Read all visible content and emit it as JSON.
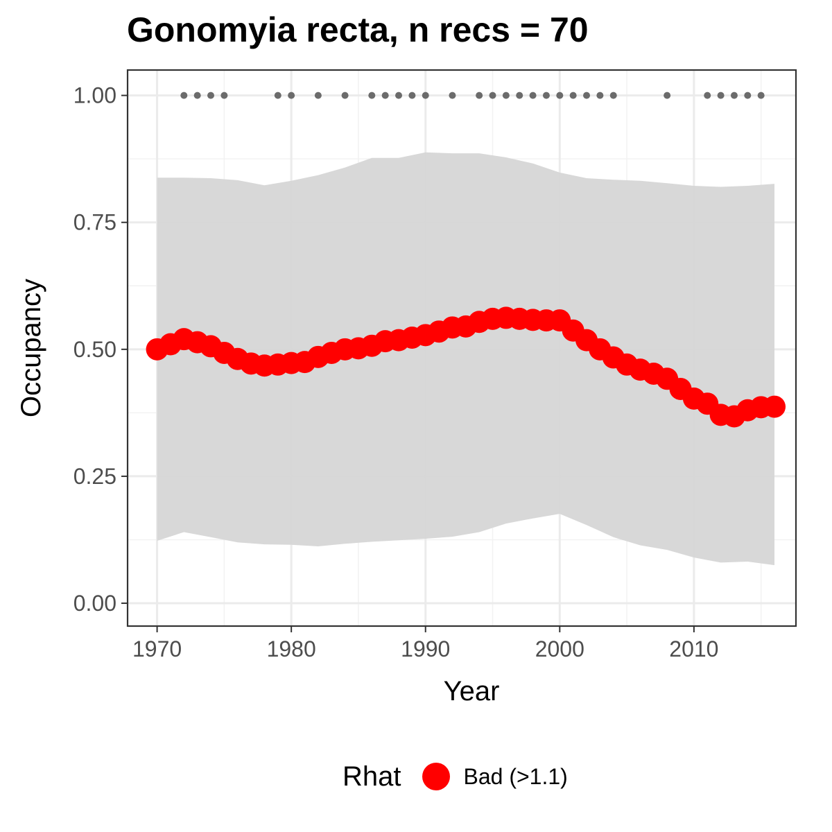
{
  "chart_data": {
    "type": "line",
    "title": "Gonomyia recta, n recs = 70",
    "xlabel": "Year",
    "ylabel": "Occupancy",
    "xlim": [
      1967.8,
      2017.6
    ],
    "ylim": [
      -0.045,
      1.05
    ],
    "x_ticks": [
      1970,
      1980,
      1990,
      2000,
      2010
    ],
    "x_tick_labels": [
      "1970",
      "1980",
      "1990",
      "2000",
      "2010"
    ],
    "y_ticks": [
      0,
      0.25,
      0.5,
      0.75,
      1.0
    ],
    "y_tick_labels": [
      "0.00",
      "0.25",
      "0.50",
      "0.75",
      "1.00"
    ],
    "grid": true,
    "legend": {
      "title": "Rhat",
      "position": "bottom",
      "entries": [
        {
          "label": "Bad (>1.1)",
          "color": "#ff0000"
        }
      ]
    },
    "series": [
      {
        "name": "Bad (>1.1)",
        "color": "#ff0000",
        "x": [
          1970,
          1971,
          1972,
          1973,
          1974,
          1975,
          1976,
          1977,
          1978,
          1979,
          1980,
          1981,
          1982,
          1983,
          1984,
          1985,
          1986,
          1987,
          1988,
          1989,
          1990,
          1991,
          1992,
          1993,
          1994,
          1995,
          1996,
          1997,
          1998,
          1999,
          2000,
          2001,
          2002,
          2003,
          2004,
          2005,
          2006,
          2007,
          2008,
          2009,
          2010,
          2011,
          2012,
          2013,
          2014,
          2015,
          2016
        ],
        "y": [
          0.5,
          0.51,
          0.52,
          0.514,
          0.506,
          0.493,
          0.481,
          0.472,
          0.468,
          0.47,
          0.473,
          0.475,
          0.485,
          0.493,
          0.5,
          0.502,
          0.507,
          0.516,
          0.518,
          0.523,
          0.528,
          0.535,
          0.543,
          0.545,
          0.554,
          0.56,
          0.562,
          0.56,
          0.558,
          0.557,
          0.557,
          0.537,
          0.518,
          0.5,
          0.484,
          0.47,
          0.46,
          0.452,
          0.442,
          0.422,
          0.403,
          0.393,
          0.371,
          0.368,
          0.38,
          0.386,
          0.387
        ]
      }
    ],
    "ribbon": {
      "fill": "#d6d6d6",
      "x": [
        1970,
        1972,
        1974,
        1976,
        1978,
        1980,
        1982,
        1984,
        1986,
        1988,
        1990,
        1992,
        1994,
        1996,
        1998,
        2000,
        2002,
        2004,
        2006,
        2008,
        2010,
        2012,
        2014,
        2016
      ],
      "upper": [
        0.838,
        0.838,
        0.837,
        0.833,
        0.823,
        0.832,
        0.843,
        0.858,
        0.877,
        0.877,
        0.888,
        0.886,
        0.886,
        0.878,
        0.866,
        0.848,
        0.837,
        0.834,
        0.832,
        0.827,
        0.822,
        0.82,
        0.822,
        0.826
      ],
      "lower": [
        0.123,
        0.14,
        0.13,
        0.12,
        0.116,
        0.115,
        0.112,
        0.117,
        0.121,
        0.124,
        0.127,
        0.131,
        0.14,
        0.157,
        0.167,
        0.176,
        0.154,
        0.13,
        0.114,
        0.105,
        0.09,
        0.08,
        0.082,
        0.075
      ]
    },
    "records": {
      "color": "#6b6b6b",
      "y": 1.0,
      "x": [
        1972,
        1973,
        1974,
        1975,
        1979,
        1980,
        1982,
        1984,
        1986,
        1987,
        1988,
        1989,
        1990,
        1992,
        1994,
        1995,
        1996,
        1997,
        1998,
        1999,
        2000,
        2001,
        2002,
        2003,
        2004,
        2008,
        2011,
        2012,
        2013,
        2014,
        2015
      ]
    }
  }
}
